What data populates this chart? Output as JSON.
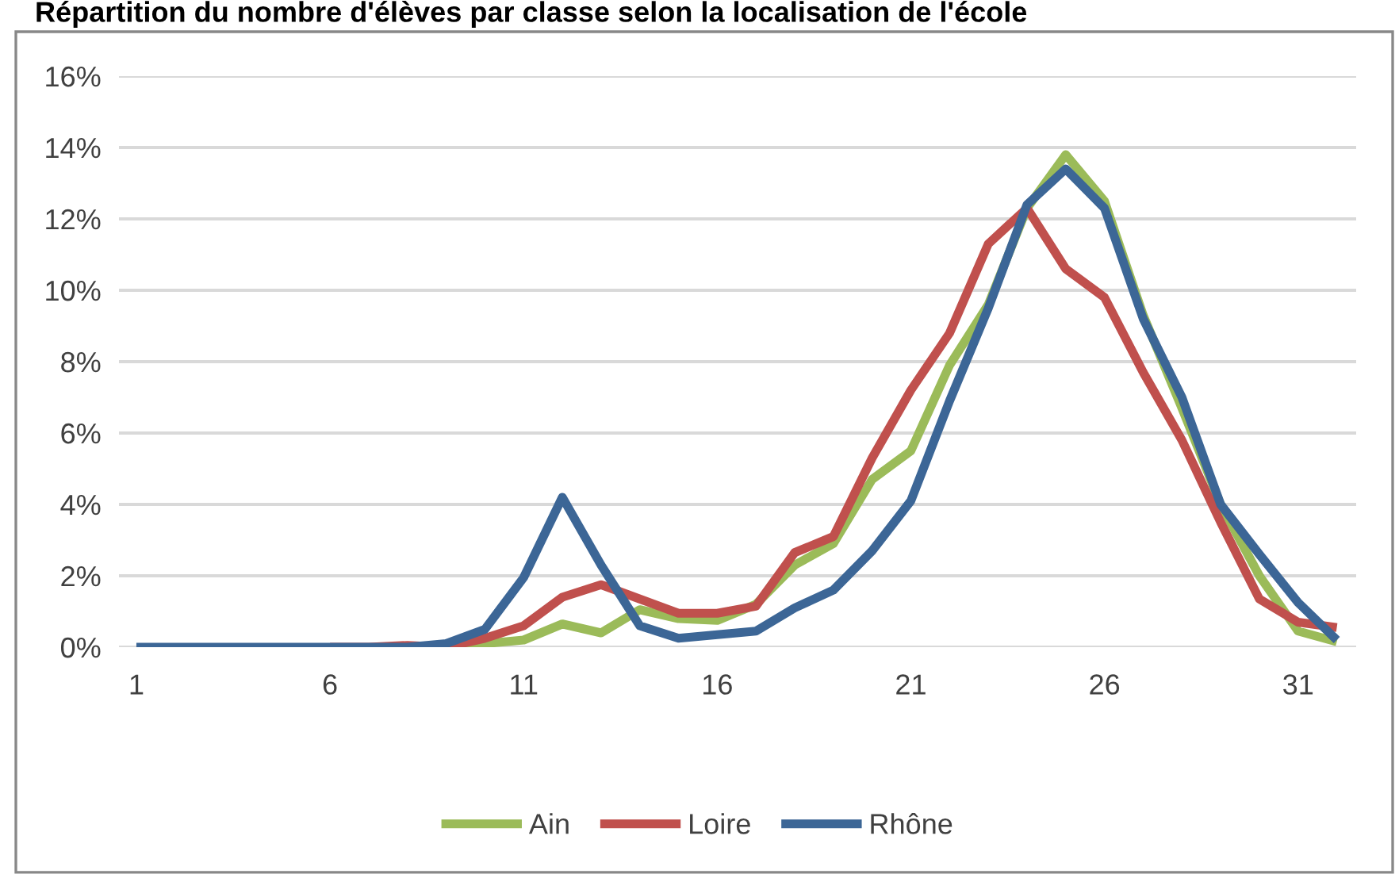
{
  "chart_data": {
    "type": "line",
    "title": "Répartition du nombre d'élèves par classe selon la localisation de l'école",
    "categories": [
      "1",
      null,
      null,
      null,
      null,
      "6",
      null,
      null,
      null,
      null,
      "11",
      null,
      null,
      null,
      null,
      "16",
      null,
      null,
      null,
      null,
      "21",
      null,
      null,
      null,
      null,
      "26",
      null,
      null,
      null,
      null,
      "31",
      null
    ],
    "series": [
      {
        "name": "Ain",
        "color": "#9bbb59",
        "values": [
          null,
          null,
          null,
          null,
          null,
          null,
          null,
          0,
          0,
          0.1,
          0.2,
          0.65,
          0.4,
          1.05,
          0.8,
          0.75,
          1.2,
          2.3,
          2.9,
          4.7,
          5.5,
          7.9,
          9.6,
          12.3,
          13.8,
          12.5,
          9.3,
          6.7,
          4.0,
          2.0,
          0.45,
          0.15
        ]
      },
      {
        "name": "Loire",
        "color": "#c0504d",
        "values": [
          null,
          null,
          null,
          null,
          null,
          0,
          0,
          0.05,
          0,
          0.25,
          0.6,
          1.4,
          1.75,
          1.35,
          0.95,
          0.95,
          1.15,
          2.65,
          3.1,
          5.3,
          7.2,
          8.8,
          11.3,
          12.3,
          10.6,
          9.8,
          7.7,
          5.8,
          3.5,
          1.35,
          0.7,
          0.55
        ]
      },
      {
        "name": "Rhône",
        "color": "#3c6696",
        "values": [
          0,
          0,
          0,
          0,
          0,
          0,
          0,
          0,
          0.1,
          0.5,
          1.95,
          4.2,
          2.3,
          0.6,
          0.25,
          0.35,
          0.45,
          1.1,
          1.6,
          2.7,
          4.1,
          6.9,
          9.5,
          12.4,
          13.4,
          12.3,
          9.2,
          7.0,
          4.0,
          2.6,
          1.25,
          0.2
        ]
      }
    ],
    "ylim": [
      0,
      16
    ],
    "yticks": [
      {
        "value": 0,
        "label": "0%"
      },
      {
        "value": 2,
        "label": "2%"
      },
      {
        "value": 4,
        "label": "4%"
      },
      {
        "value": 6,
        "label": "6%"
      },
      {
        "value": 8,
        "label": "8%"
      },
      {
        "value": 10,
        "label": "10%"
      },
      {
        "value": 12,
        "label": "12%"
      },
      {
        "value": 14,
        "label": "14%"
      },
      {
        "value": 16,
        "label": "16%"
      }
    ],
    "grid": "y",
    "legend": "bottom",
    "marker": "none",
    "line_style": "solid"
  }
}
